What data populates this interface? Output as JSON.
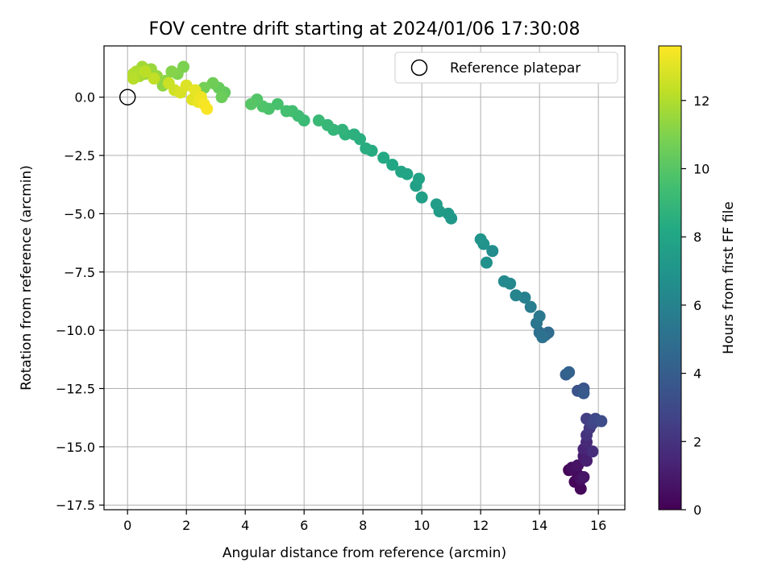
{
  "chart_data": {
    "type": "scatter",
    "title": "FOV centre drift starting at 2024/01/06 17:30:08",
    "xlabel": "Angular distance from reference (arcmin)",
    "ylabel": "Rotation from reference (arcmin)",
    "xlim": [
      -0.8,
      16.9
    ],
    "ylim": [
      -17.7,
      2.2
    ],
    "xticks": [
      0,
      2,
      4,
      6,
      8,
      10,
      12,
      14,
      16
    ],
    "yticks": [
      0.0,
      -2.5,
      -5.0,
      -7.5,
      -10.0,
      -12.5,
      -15.0,
      -17.5
    ],
    "xtick_labels": [
      "0",
      "2",
      "4",
      "6",
      "8",
      "10",
      "12",
      "14",
      "16"
    ],
    "ytick_labels": [
      "0.0",
      "−2.5",
      "−5.0",
      "−7.5",
      "−10.0",
      "−12.5",
      "−15.0",
      "−17.5"
    ],
    "grid": true,
    "colormap": "viridis",
    "colorbar": {
      "label": "Hours from first FF file",
      "range": [
        0,
        13.6
      ],
      "ticks": [
        0,
        2,
        4,
        6,
        8,
        10,
        12
      ],
      "tick_labels": [
        "0",
        "2",
        "4",
        "6",
        "8",
        "10",
        "12"
      ]
    },
    "reference": {
      "x": 0,
      "y": 0,
      "label": "Reference platepar"
    },
    "legend": {
      "placement": "top-right",
      "entries": [
        "Reference platepar"
      ]
    },
    "series": [
      {
        "points": [
          [
            15.0,
            -16.0,
            0.1
          ],
          [
            15.2,
            -16.5,
            0.2
          ],
          [
            15.4,
            -16.8,
            0.3
          ],
          [
            15.3,
            -16.2,
            0.4
          ],
          [
            15.1,
            -15.9,
            0.5
          ],
          [
            15.4,
            -16.4,
            0.6
          ],
          [
            15.3,
            -15.8,
            0.7
          ],
          [
            15.5,
            -16.3,
            0.8
          ],
          [
            15.5,
            -15.4,
            1.0
          ],
          [
            15.6,
            -15.6,
            1.2
          ],
          [
            15.5,
            -15.1,
            1.4
          ],
          [
            15.6,
            -14.8,
            1.6
          ],
          [
            15.8,
            -15.2,
            1.8
          ],
          [
            15.6,
            -14.5,
            2.0
          ],
          [
            15.7,
            -14.2,
            2.2
          ],
          [
            15.6,
            -13.8,
            2.5
          ],
          [
            15.8,
            -14.0,
            2.7
          ],
          [
            15.9,
            -13.8,
            2.9
          ],
          [
            16.1,
            -13.9,
            3.1
          ],
          [
            15.3,
            -12.6,
            3.4
          ],
          [
            15.5,
            -12.5,
            3.6
          ],
          [
            15.5,
            -12.7,
            3.8
          ],
          [
            14.9,
            -11.9,
            4.1
          ],
          [
            15.0,
            -11.8,
            4.3
          ],
          [
            14.2,
            -10.2,
            4.6
          ],
          [
            14.3,
            -10.1,
            4.8
          ],
          [
            14.0,
            -10.1,
            5.0
          ],
          [
            14.1,
            -10.3,
            5.1
          ],
          [
            13.9,
            -9.7,
            5.3
          ],
          [
            14.0,
            -9.4,
            5.5
          ],
          [
            13.7,
            -9.0,
            5.7
          ],
          [
            13.5,
            -8.6,
            5.9
          ],
          [
            13.2,
            -8.5,
            6.1
          ],
          [
            13.0,
            -8.0,
            6.3
          ],
          [
            12.8,
            -7.9,
            6.4
          ],
          [
            12.4,
            -6.6,
            6.6
          ],
          [
            12.2,
            -7.1,
            6.8
          ],
          [
            12.1,
            -6.3,
            6.9
          ],
          [
            12.0,
            -6.1,
            7.0
          ],
          [
            11.0,
            -5.2,
            7.2
          ],
          [
            10.9,
            -5.0,
            7.3
          ],
          [
            10.6,
            -4.9,
            7.4
          ],
          [
            10.5,
            -4.6,
            7.5
          ],
          [
            10.0,
            -4.3,
            7.6
          ],
          [
            9.8,
            -3.8,
            7.7
          ],
          [
            9.9,
            -3.5,
            7.8
          ],
          [
            9.5,
            -3.3,
            7.9
          ],
          [
            9.3,
            -3.2,
            8.0
          ],
          [
            9.0,
            -2.9,
            8.1
          ],
          [
            8.7,
            -2.6,
            8.2
          ],
          [
            8.3,
            -2.3,
            8.3
          ],
          [
            8.1,
            -2.2,
            8.4
          ],
          [
            7.9,
            -1.8,
            8.5
          ],
          [
            7.7,
            -1.6,
            8.6
          ],
          [
            7.4,
            -1.6,
            8.7
          ],
          [
            7.3,
            -1.4,
            8.8
          ],
          [
            7.0,
            -1.4,
            8.9
          ],
          [
            6.8,
            -1.2,
            9.0
          ],
          [
            6.5,
            -1.0,
            9.1
          ],
          [
            6.0,
            -1.0,
            9.2
          ],
          [
            5.8,
            -0.8,
            9.3
          ],
          [
            5.6,
            -0.6,
            9.4
          ],
          [
            5.4,
            -0.6,
            9.5
          ],
          [
            5.1,
            -0.3,
            9.6
          ],
          [
            4.8,
            -0.5,
            9.7
          ],
          [
            4.6,
            -0.4,
            9.8
          ],
          [
            4.4,
            -0.1,
            9.9
          ],
          [
            4.2,
            -0.3,
            10.0
          ],
          [
            3.3,
            0.2,
            10.3
          ],
          [
            3.1,
            0.4,
            10.4
          ],
          [
            3.2,
            0.0,
            10.5
          ],
          [
            2.9,
            0.6,
            10.6
          ],
          [
            2.6,
            0.4,
            10.7
          ],
          [
            1.9,
            1.3,
            10.9
          ],
          [
            1.7,
            1.0,
            11.0
          ],
          [
            1.5,
            1.1,
            11.1
          ],
          [
            1.3,
            0.7,
            11.2
          ],
          [
            1.2,
            0.5,
            11.3
          ],
          [
            1.0,
            0.9,
            11.4
          ],
          [
            0.8,
            1.2,
            11.5
          ],
          [
            0.6,
            1.0,
            11.6
          ],
          [
            0.5,
            1.3,
            11.7
          ],
          [
            0.4,
            0.9,
            11.8
          ],
          [
            0.3,
            1.1,
            11.9
          ],
          [
            0.2,
            1.0,
            12.0
          ],
          [
            0.2,
            0.8,
            12.1
          ],
          [
            0.6,
            1.1,
            12.2
          ],
          [
            0.9,
            0.8,
            12.3
          ],
          [
            1.4,
            0.6,
            12.5
          ],
          [
            1.6,
            0.3,
            12.6
          ],
          [
            1.8,
            0.2,
            12.8
          ],
          [
            2.0,
            0.5,
            12.9
          ],
          [
            2.2,
            -0.1,
            13.0
          ],
          [
            2.3,
            0.3,
            13.1
          ],
          [
            2.4,
            -0.2,
            13.2
          ],
          [
            2.5,
            0.0,
            13.3
          ],
          [
            2.6,
            -0.3,
            13.4
          ],
          [
            2.7,
            -0.5,
            13.5
          ]
        ]
      }
    ]
  }
}
